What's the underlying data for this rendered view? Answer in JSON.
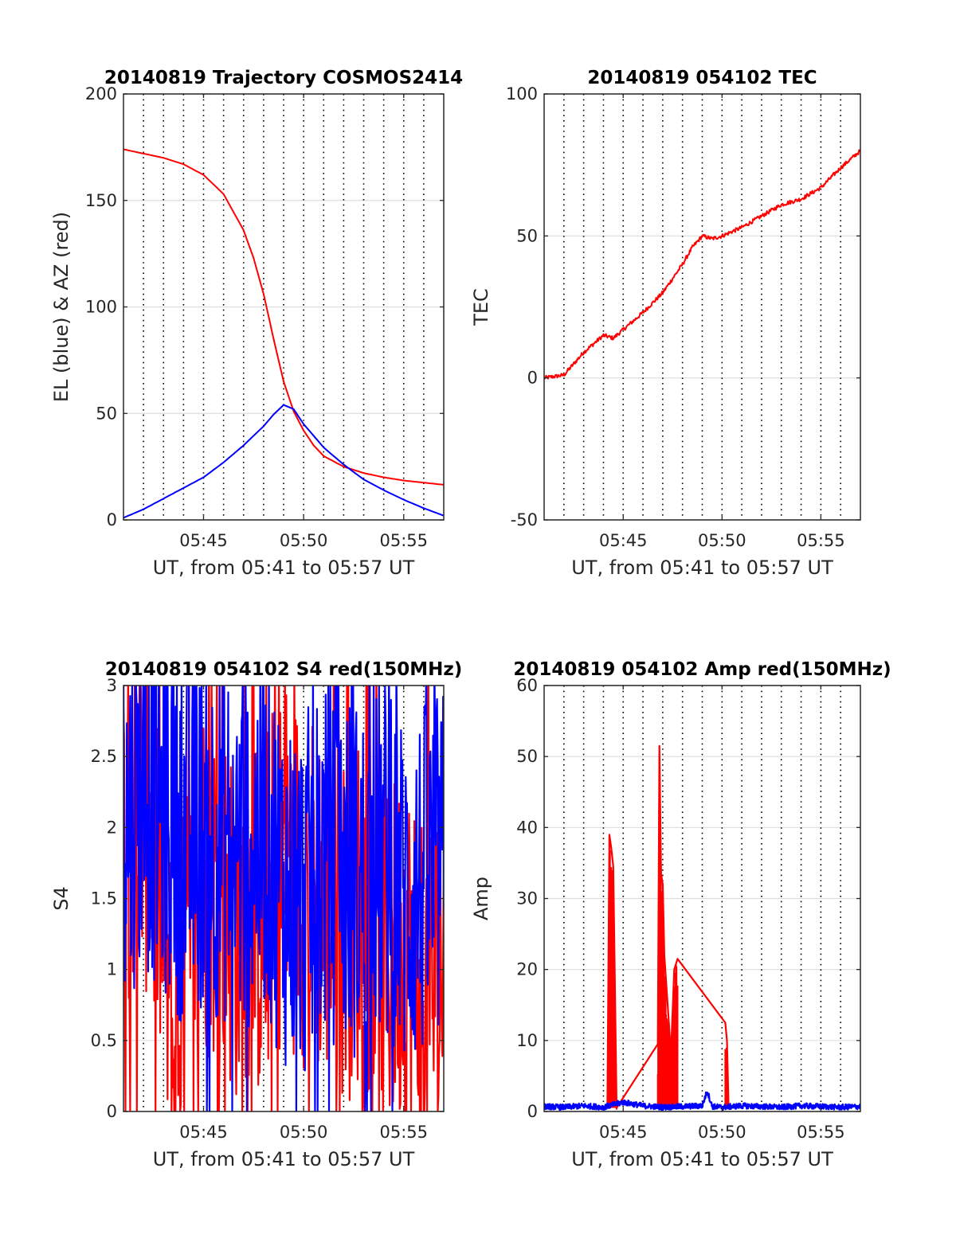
{
  "chart_data": [
    {
      "type": "line",
      "title": "20140819 Trajectory COSMOS2414",
      "xlabel": "UT, from 05:41 to 05:57 UT",
      "ylabel": "EL (blue) & AZ (red)",
      "xlim": [
        "05:41",
        "05:57"
      ],
      "ylim": [
        0,
        200
      ],
      "x_ticks": [
        "05:45",
        "05:50",
        "05:55"
      ],
      "y_ticks": [
        "0",
        "50",
        "100",
        "150",
        "200"
      ],
      "grid": "dotted vertical every minute, light horizontal at y ticks",
      "series": [
        {
          "color": "#ff0000",
          "x": [
            "05:41",
            "05:42",
            "05:43",
            "05:44",
            "05:45",
            "05:46",
            "05:47",
            "05:47:30",
            "05:48",
            "05:48:30",
            "05:49",
            "05:49:30",
            "05:50",
            "05:50:30",
            "05:51",
            "05:52",
            "05:53",
            "05:54",
            "05:55",
            "05:56",
            "05:57"
          ],
          "values": [
            174,
            172,
            170,
            167,
            162,
            153,
            136,
            123,
            106,
            85,
            65,
            51,
            42,
            35,
            30,
            25,
            22,
            20,
            18.5,
            17.5,
            16.5
          ]
        },
        {
          "color": "#0000ff",
          "x": [
            "05:41",
            "05:42",
            "05:43",
            "05:44",
            "05:45",
            "05:46",
            "05:47",
            "05:48",
            "05:48:30",
            "05:49",
            "05:49:30",
            "05:50",
            "05:51",
            "05:52",
            "05:53",
            "05:54",
            "05:55",
            "05:56",
            "05:57"
          ],
          "values": [
            1,
            5,
            10,
            15,
            20,
            27,
            35,
            44,
            49.5,
            54,
            52,
            45,
            34,
            26,
            19,
            14,
            9.5,
            5.5,
            2
          ]
        }
      ]
    },
    {
      "type": "line",
      "title": "20140819 054102 TEC",
      "xlabel": "UT, from 05:41 to 05:57 UT",
      "ylabel": "TEC",
      "xlim": [
        "05:41",
        "05:57"
      ],
      "ylim": [
        -50,
        100
      ],
      "x_ticks": [
        "05:45",
        "05:50",
        "05:55"
      ],
      "y_ticks": [
        "-50",
        "0",
        "50",
        "100"
      ],
      "grid": "dotted vertical every minute, light horizontal at y ticks",
      "series": [
        {
          "color": "#ff0000",
          "x": [
            "05:41",
            "05:42",
            "05:42:30",
            "05:43",
            "05:43:30",
            "05:44",
            "05:44:30",
            "05:45",
            "05:46",
            "05:47",
            "05:48",
            "05:48:30",
            "05:49",
            "05:49:30",
            "05:50",
            "05:51",
            "05:52",
            "05:53",
            "05:54",
            "05:55",
            "05:56",
            "05:57"
          ],
          "values": [
            0,
            1,
            5,
            9,
            12,
            15,
            14,
            17,
            23,
            30,
            40,
            46,
            50,
            49,
            50,
            53,
            57,
            61,
            63,
            67,
            74,
            80
          ]
        }
      ]
    },
    {
      "type": "line",
      "title": "20140819 054102 S4 red(150MHz)",
      "xlabel": "UT, from 05:41 to 05:57 UT",
      "ylabel": "S4",
      "xlim": [
        "05:41",
        "05:57"
      ],
      "ylim": [
        0,
        3
      ],
      "x_ticks": [
        "05:45",
        "05:50",
        "05:55"
      ],
      "y_ticks": [
        "0",
        "0.5",
        "1",
        "1.5",
        "2",
        "2.5",
        "3"
      ],
      "grid": "dotted vertical every minute, light horizontal at y ticks",
      "series": [
        {
          "color": "#ff0000",
          "x": [
            "05:41",
            "05:42",
            "05:43",
            "05:43:30",
            "05:44",
            "05:45",
            "05:46",
            "05:47",
            "05:48",
            "05:49",
            "05:50",
            "05:51",
            "05:52",
            "05:53",
            "05:54",
            "05:55",
            "05:56",
            "05:57"
          ],
          "values": [
            2.0,
            2.2,
            1.4,
            0.3,
            0.9,
            1.7,
            1.5,
            1.2,
            1.4,
            1.8,
            1.6,
            1.5,
            1.3,
            1.5,
            1.0,
            1.2,
            0.8,
            1.0
          ]
        },
        {
          "color": "#0000ff",
          "x": [
            "05:41",
            "05:42",
            "05:43",
            "05:44",
            "05:45",
            "05:46",
            "05:47",
            "05:48",
            "05:49",
            "05:50",
            "05:51",
            "05:52",
            "05:53",
            "05:54",
            "05:55",
            "05:56",
            "05:57"
          ],
          "values": [
            2.0,
            2.3,
            2.1,
            1.9,
            2.0,
            1.9,
            1.8,
            2.0,
            1.6,
            1.5,
            1.8,
            1.7,
            1.6,
            1.8,
            1.5,
            1.6,
            1.7
          ]
        }
      ]
    },
    {
      "type": "line",
      "title": "20140819 054102 Amp red(150MHz)",
      "xlabel": "UT, from 05:41 to 05:57 UT",
      "ylabel": "Amp",
      "xlim": [
        "05:41",
        "05:57"
      ],
      "ylim": [
        0,
        60
      ],
      "x_ticks": [
        "05:45",
        "05:50",
        "05:55"
      ],
      "y_ticks": [
        "0",
        "10",
        "20",
        "30",
        "40",
        "50",
        "60"
      ],
      "grid": "dotted vertical every minute, light horizontal at y ticks",
      "series": [
        {
          "color": "#ff0000",
          "x": [
            "05:44:12",
            "05:44:18",
            "05:44:24",
            "05:44:30",
            "05:44:40",
            "05:46:45",
            "05:46:50",
            "05:46:55",
            "05:47:00",
            "05:47:05",
            "05:47:15",
            "05:47:25",
            "05:47:35",
            "05:47:45",
            "05:50:10",
            "05:50:15",
            "05:50:20"
          ],
          "values": [
            0.5,
            39,
            37,
            34.5,
            0.5,
            9.5,
            51.5,
            33.5,
            32,
            22,
            15,
            8,
            20,
            21.5,
            12.5,
            10,
            0.5
          ]
        },
        {
          "color": "#0000ff",
          "x": [
            "05:41",
            "05:42",
            "05:43",
            "05:44",
            "05:45",
            "05:46",
            "05:47",
            "05:48",
            "05:49",
            "05:49:15",
            "05:49:30",
            "05:50",
            "05:51",
            "05:52",
            "05:53",
            "05:54",
            "05:55",
            "05:56",
            "05:57"
          ],
          "values": [
            0.7,
            0.6,
            0.8,
            0.6,
            1.3,
            0.8,
            0.6,
            0.7,
            0.8,
            2.9,
            0.7,
            0.6,
            0.8,
            0.7,
            0.6,
            0.8,
            0.7,
            0.6,
            0.7
          ]
        }
      ]
    }
  ]
}
